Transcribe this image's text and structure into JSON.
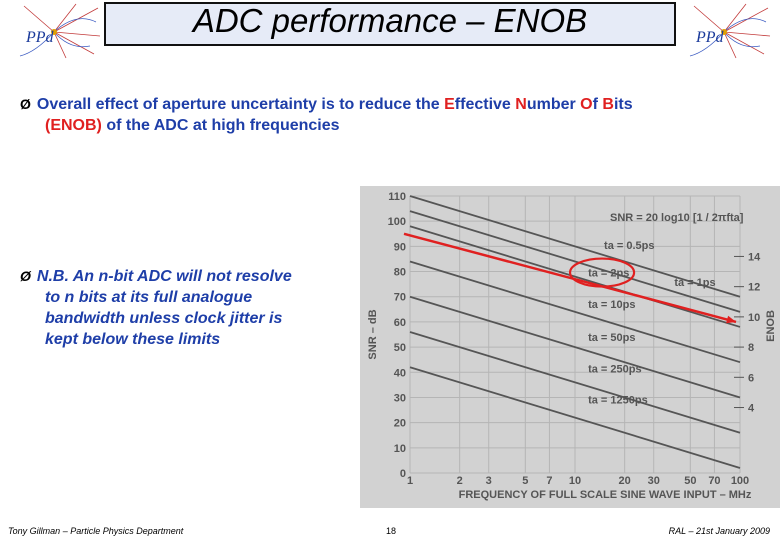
{
  "slide": {
    "title": "ADC performance – ENOB",
    "logo_text": "PPd",
    "bullet1": {
      "arrow": "Ø",
      "part1": "Overall effect of aperture uncertainty is to reduce the ",
      "e": "E",
      "w1": "ffective ",
      "n": "N",
      "w2": "umber ",
      "o": "O",
      "w3": "f ",
      "b": "B",
      "w4": "its",
      "line2a": "(ENOB)",
      "line2b": " of the ADC at high frequencies"
    },
    "bullet2": {
      "arrow": "Ø",
      "lines": [
        "N.B. An n-bit ADC will not resolve",
        "to n bits at its full analogue",
        "bandwidth unless clock jitter is",
        "kept below these limits"
      ]
    },
    "footer": {
      "left": "Tony Gillman – Particle Physics Department",
      "page": "18",
      "right": "RAL – 21st January 2009"
    },
    "colors": {
      "title_bg": "#e6ebf7",
      "text_blue": "#1e3ea8",
      "text_red": "#e02020",
      "chart_bg": "#d2d2d2",
      "chart_fg": "#555555"
    }
  },
  "chart_data": {
    "type": "line",
    "xlabel": "FREQUENCY OF FULL SCALE SINE WAVE INPUT – MHz",
    "ylabel": "SNR – dB",
    "y2label": "ENOB",
    "x_scale": "log",
    "xlim": [
      1,
      100
    ],
    "ylim": [
      0,
      110
    ],
    "x_ticks": [
      1,
      2,
      3,
      5,
      7,
      10,
      20,
      30,
      50,
      70,
      100
    ],
    "y_ticks": [
      0,
      10,
      20,
      30,
      40,
      50,
      60,
      70,
      80,
      90,
      100,
      110
    ],
    "y2_ticks": [
      {
        "value": 14,
        "snr": 86
      },
      {
        "value": 12,
        "snr": 74
      },
      {
        "value": 10,
        "snr": 62
      },
      {
        "value": 8,
        "snr": 50
      },
      {
        "value": 6,
        "snr": 38
      },
      {
        "value": 4,
        "snr": 26
      }
    ],
    "formula": "SNR = 20 log10 [1 / 2πfta]",
    "series": [
      {
        "name": "ta = 0.5ps",
        "x": [
          1,
          100
        ],
        "y": [
          110,
          70
        ]
      },
      {
        "name": "ta = 1ps",
        "x": [
          1,
          100
        ],
        "y": [
          104,
          64
        ]
      },
      {
        "name": "ta = 2ps",
        "x": [
          1,
          100
        ],
        "y": [
          98,
          58
        ]
      },
      {
        "name": "ta = 10ps",
        "x": [
          1,
          100
        ],
        "y": [
          84,
          44
        ]
      },
      {
        "name": "ta = 50ps",
        "x": [
          1,
          100
        ],
        "y": [
          70,
          30
        ]
      },
      {
        "name": "ta = 250ps",
        "x": [
          1,
          100
        ],
        "y": [
          56,
          16
        ]
      },
      {
        "name": "ta = 1250ps",
        "x": [
          1,
          100
        ],
        "y": [
          42,
          2
        ]
      }
    ],
    "highlight_arrow": {
      "x": [
        1,
        100
      ],
      "y": [
        95,
        60
      ]
    },
    "highlight_circle_label": "ta = 2ps"
  }
}
